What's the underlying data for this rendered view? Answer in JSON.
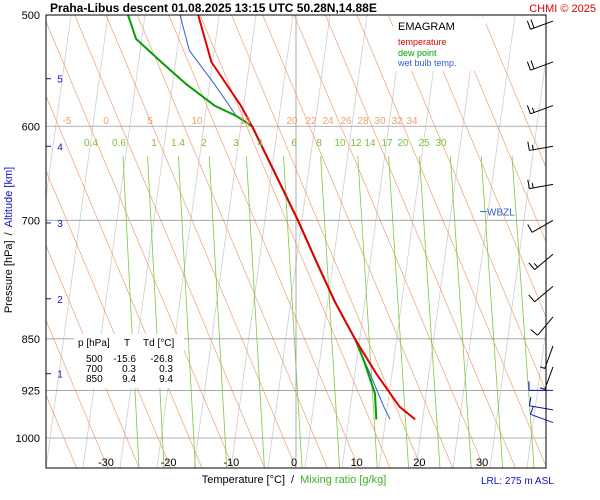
{
  "header": {
    "title": "Praha-Libus   descent   01.08.2025 13:15 UTC   50.28N,14.88E",
    "copyright": "CHMI © 2025"
  },
  "legend": {
    "title": "EMAGRAM",
    "items": [
      {
        "label": "temperature",
        "color": "#e00000"
      },
      {
        "label": "dew point",
        "color": "#00a000"
      },
      {
        "label": "wet bulb temp.",
        "color": "#3060d0"
      }
    ]
  },
  "axes": {
    "ylabel_pressure": "Pressure [hPa]",
    "ylabel_sep": "/",
    "ylabel_altitude": "Altitude [km]",
    "xlabel_temp": "Temperature [°C]",
    "xlabel_sep": "/",
    "xlabel_mix": "Mixing ratio [g/kg]",
    "lrl": "LRL: 275 m ASL",
    "wbzl": "WBZL"
  },
  "colors": {
    "temperature": "#e00000",
    "dewpoint": "#00a000",
    "wetbulb": "#3060d0",
    "isotherm": "#f0a070",
    "dry_adiabat": "#c8c8c8",
    "mixing_ratio": "#80c840",
    "altitude": "#1010c0"
  },
  "table": {
    "headers": [
      "p [hPa]",
      "T",
      "Td [°C]"
    ],
    "rows": [
      [
        "500",
        "-15.6",
        "-26.8"
      ],
      [
        "700",
        "0.3",
        "0.3"
      ],
      [
        "850",
        "9.4",
        "9.4"
      ]
    ]
  },
  "chart_data": {
    "type": "line",
    "title": "EMAGRAM",
    "xlabel": "Temperature [°C]",
    "ylabel": "Pressure [hPa]",
    "xlim": [
      -40,
      40
    ],
    "ylim": [
      1000,
      500
    ],
    "yscale": "log",
    "x_ticks": [
      -30,
      -20,
      -10,
      0,
      10,
      20,
      30
    ],
    "pressure_ticks": [
      500,
      600,
      700,
      850,
      925,
      1000
    ],
    "altitude_ticks": [
      {
        "label": "5",
        "p": 555
      },
      {
        "label": "4",
        "p": 620
      },
      {
        "label": "3",
        "p": 703
      },
      {
        "label": "2",
        "p": 796
      },
      {
        "label": "1",
        "p": 900
      }
    ],
    "isotherm_labels": [
      "-5",
      "0",
      "5",
      "10",
      "15",
      "20",
      "22",
      "24",
      "26",
      "28",
      "30",
      "32",
      "34"
    ],
    "mixing_ratio_labels": [
      "0.4",
      "0.6",
      "1",
      "1.4",
      "2",
      "3",
      "4",
      "6",
      "8",
      "10",
      "12",
      "14",
      "17",
      "20",
      "25",
      "30"
    ],
    "series": [
      {
        "name": "temperature",
        "points": [
          [
            500,
            -15.6
          ],
          [
            540,
            -13.5
          ],
          [
            580,
            -8.8
          ],
          [
            600,
            -7.0
          ],
          [
            650,
            -3.2
          ],
          [
            700,
            0.3
          ],
          [
            750,
            3.3
          ],
          [
            800,
            6.2
          ],
          [
            850,
            9.4
          ],
          [
            900,
            12.8
          ],
          [
            950,
            16.5
          ],
          [
            970,
            19.0
          ]
        ]
      },
      {
        "name": "dew point",
        "points": [
          [
            500,
            -26.8
          ],
          [
            520,
            -25.5
          ],
          [
            540,
            -21.5
          ],
          [
            560,
            -17.5
          ],
          [
            580,
            -13.0
          ],
          [
            590,
            -9.5
          ],
          [
            600,
            -7.0
          ],
          [
            650,
            -3.2
          ],
          [
            700,
            0.3
          ],
          [
            750,
            3.3
          ],
          [
            800,
            6.2
          ],
          [
            850,
            9.4
          ],
          [
            880,
            10.8
          ],
          [
            930,
            12.6
          ],
          [
            970,
            12.8
          ]
        ]
      },
      {
        "name": "wet bulb temp.",
        "points": [
          [
            500,
            -18.5
          ],
          [
            530,
            -17.0
          ],
          [
            560,
            -13.0
          ],
          [
            590,
            -9.5
          ],
          [
            600,
            -7.0
          ],
          [
            650,
            -3.2
          ],
          [
            700,
            0.3
          ],
          [
            750,
            3.3
          ],
          [
            800,
            6.2
          ],
          [
            850,
            9.4
          ],
          [
            900,
            11.8
          ],
          [
            950,
            14.0
          ],
          [
            970,
            15.0
          ]
        ]
      }
    ],
    "wind_barbs": [
      {
        "p": 505,
        "direction": 250,
        "speed_kt": 20
      },
      {
        "p": 540,
        "direction": 250,
        "speed_kt": 20
      },
      {
        "p": 580,
        "direction": 250,
        "speed_kt": 15
      },
      {
        "p": 620,
        "direction": 260,
        "speed_kt": 15
      },
      {
        "p": 660,
        "direction": 260,
        "speed_kt": 15
      },
      {
        "p": 700,
        "direction": 240,
        "speed_kt": 10
      },
      {
        "p": 740,
        "direction": 230,
        "speed_kt": 15
      },
      {
        "p": 780,
        "direction": 230,
        "speed_kt": 10
      },
      {
        "p": 820,
        "direction": 220,
        "speed_kt": 10
      },
      {
        "p": 860,
        "direction": 200,
        "speed_kt": 5
      },
      {
        "p": 890,
        "direction": 200,
        "speed_kt": 5
      },
      {
        "p": 925,
        "direction": 270,
        "speed_kt": 10
      },
      {
        "p": 955,
        "direction": 280,
        "speed_kt": 10
      },
      {
        "p": 975,
        "direction": 290,
        "speed_kt": 10
      }
    ]
  }
}
